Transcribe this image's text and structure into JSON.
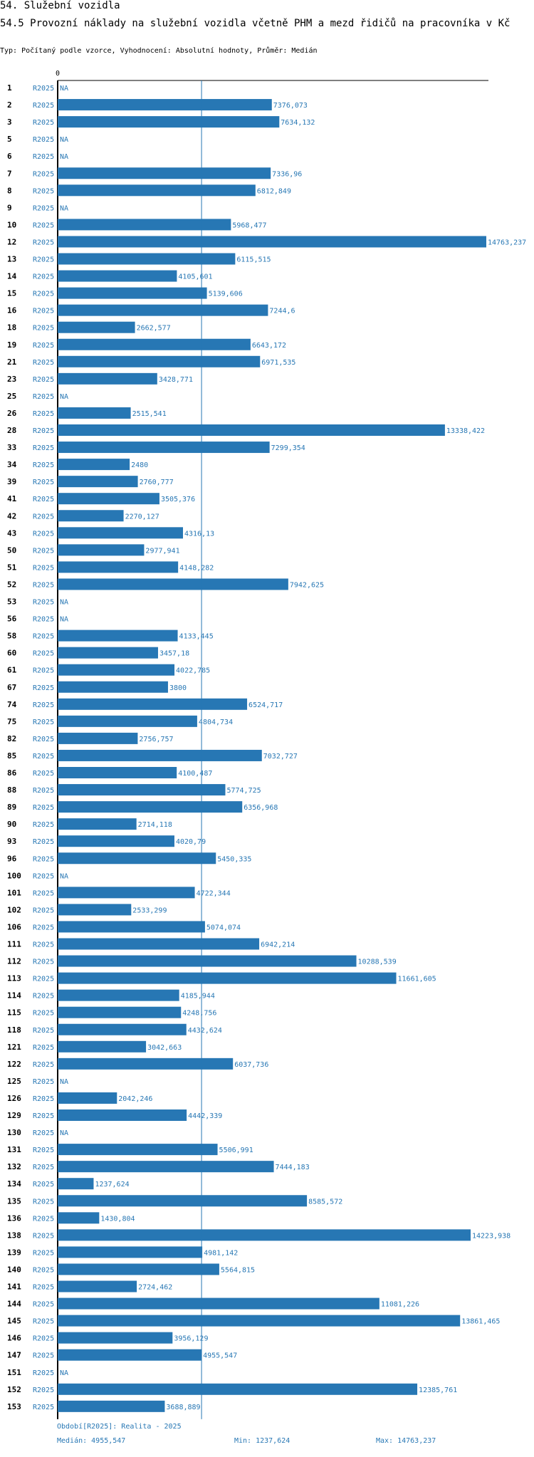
{
  "header": {
    "section": "54. Služební vozidla",
    "title": "54.5 Provozní náklady na služební vozidla včetně PHM a mezd řidičů na pracovníka v Kč",
    "type_line": "Typ: Počítaný podle vzorce, Vyhodnocení: Absolutní hodnoty, Průměr: Medián"
  },
  "chart_data": {
    "type": "bar",
    "orientation": "horizontal",
    "title": "54.5 Provozní náklady na služební vozidla včetně PHM a mezd řidičů na pracovníka v Kč",
    "xlim": [
      0,
      14763.237
    ],
    "x_tick_label": "0",
    "series_label": "R2025",
    "na_label": "NA",
    "colors": {
      "bar": "#2777b4",
      "label": "#2777b4",
      "median_line": "#2777b4",
      "axis": "#000000"
    },
    "median": 4955.547,
    "categories": [
      "1",
      "2",
      "3",
      "5",
      "6",
      "7",
      "8",
      "9",
      "10",
      "12",
      "13",
      "14",
      "15",
      "16",
      "18",
      "19",
      "21",
      "23",
      "25",
      "26",
      "28",
      "33",
      "34",
      "39",
      "41",
      "42",
      "43",
      "50",
      "51",
      "52",
      "53",
      "56",
      "58",
      "60",
      "61",
      "67",
      "74",
      "75",
      "82",
      "85",
      "86",
      "88",
      "89",
      "90",
      "93",
      "96",
      "100",
      "101",
      "102",
      "106",
      "111",
      "112",
      "113",
      "114",
      "115",
      "118",
      "121",
      "122",
      "125",
      "126",
      "129",
      "130",
      "131",
      "132",
      "134",
      "135",
      "136",
      "138",
      "139",
      "140",
      "141",
      "144",
      "145",
      "146",
      "147",
      "151",
      "152",
      "153"
    ],
    "values": [
      null,
      7376.073,
      7634.132,
      null,
      null,
      7336.96,
      6812.849,
      null,
      5968.477,
      14763.237,
      6115.515,
      4105.601,
      5139.606,
      7244.6,
      2662.577,
      6643.172,
      6971.535,
      3428.771,
      null,
      2515.541,
      13338.422,
      7299.354,
      2480,
      2760.777,
      3505.376,
      2270.127,
      4316.13,
      2977.941,
      4148.282,
      7942.625,
      null,
      null,
      4133.445,
      3457.18,
      4022.785,
      3800,
      6524.717,
      4804.734,
      2756.757,
      7032.727,
      4100.487,
      5774.725,
      6356.968,
      2714.118,
      4020.79,
      5450.335,
      null,
      4722.344,
      2533.299,
      5074.074,
      6942.214,
      10288.539,
      11661.605,
      4185.944,
      4248.756,
      4432.624,
      3042.663,
      6037.736,
      null,
      2042.246,
      4442.339,
      null,
      5506.991,
      7444.183,
      1237.624,
      8585.572,
      1430.804,
      14223.938,
      4981.142,
      5564.815,
      2724.462,
      11081.226,
      13861.465,
      3956.129,
      4955.547,
      null,
      12385.761,
      3688.889
    ],
    "value_labels": [
      "NA",
      "7376,073",
      "7634,132",
      "NA",
      "NA",
      "7336,96",
      "6812,849",
      "NA",
      "5968,477",
      "14763,237",
      "6115,515",
      "4105,601",
      "5139,606",
      "7244,6",
      "2662,577",
      "6643,172",
      "6971,535",
      "3428,771",
      "NA",
      "2515,541",
      "13338,422",
      "7299,354",
      "2480",
      "2760,777",
      "3505,376",
      "2270,127",
      "4316,13",
      "2977,941",
      "4148,282",
      "7942,625",
      "NA",
      "NA",
      "4133,445",
      "3457,18",
      "4022,785",
      "3800",
      "6524,717",
      "4804,734",
      "2756,757",
      "7032,727",
      "4100,487",
      "5774,725",
      "6356,968",
      "2714,118",
      "4020,79",
      "5450,335",
      "NA",
      "4722,344",
      "2533,299",
      "5074,074",
      "6942,214",
      "10288,539",
      "11661,605",
      "4185,944",
      "4248,756",
      "4432,624",
      "3042,663",
      "6037,736",
      "NA",
      "2042,246",
      "4442,339",
      "NA",
      "5506,991",
      "7444,183",
      "1237,624",
      "8585,572",
      "1430,804",
      "14223,938",
      "4981,142",
      "5564,815",
      "2724,462",
      "11081,226",
      "13861,465",
      "3956,129",
      "4955,547",
      "NA",
      "12385,761",
      "3688,889"
    ],
    "footer": {
      "period": "Období[R2025]: Realita - 2025",
      "median": "Medián: 4955,547",
      "min": "Min: 1237,624",
      "max": "Max: 14763,237"
    }
  }
}
